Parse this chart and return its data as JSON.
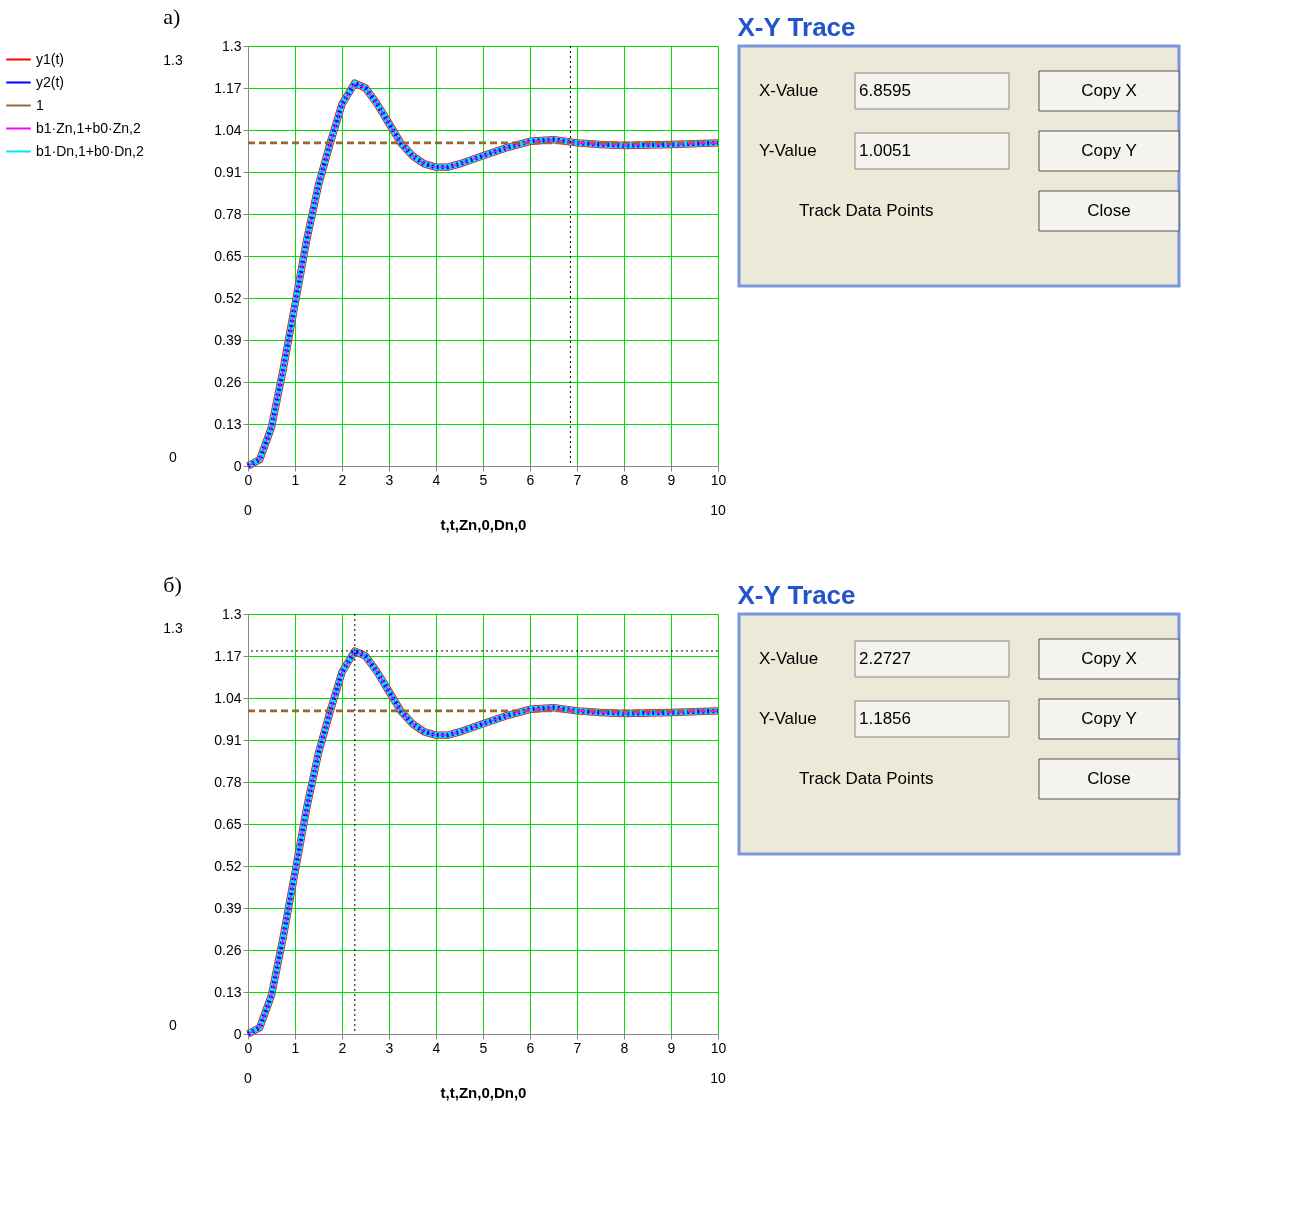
{
  "chart_data": [
    {
      "type": "line",
      "title": "а)",
      "xlabel": "t,t,Zn,0,Dn,0",
      "x": [
        0,
        0.25,
        0.5,
        0.75,
        1,
        1.25,
        1.5,
        1.75,
        2,
        2.27,
        2.5,
        2.75,
        3,
        3.25,
        3.5,
        3.75,
        4,
        4.25,
        4.5,
        5,
        5.5,
        6,
        6.5,
        7,
        7.5,
        8,
        9,
        10
      ],
      "series": [
        {
          "name": "y1(t)",
          "color": "#ff0000",
          "line_style": "solid",
          "values": [
            0,
            0.02,
            0.12,
            0.3,
            0.5,
            0.7,
            0.87,
            1.0,
            1.12,
            1.185,
            1.17,
            1.12,
            1.06,
            1.0,
            0.96,
            0.935,
            0.925,
            0.925,
            0.935,
            0.96,
            0.985,
            1.005,
            1.01,
            1.0,
            0.995,
            0.992,
            0.995,
            1.0
          ]
        },
        {
          "name": "y2(t)",
          "color": "#0000ff",
          "line_style": "dotted",
          "values": [
            0,
            0.02,
            0.12,
            0.3,
            0.5,
            0.7,
            0.87,
            1.0,
            1.12,
            1.185,
            1.17,
            1.12,
            1.06,
            1.0,
            0.96,
            0.935,
            0.925,
            0.925,
            0.935,
            0.96,
            0.985,
            1.005,
            1.01,
            1.0,
            0.995,
            0.992,
            0.995,
            1.0
          ]
        },
        {
          "name": "1",
          "color": "#996633",
          "line_style": "dashed",
          "values": [
            1,
            1,
            1,
            1,
            1,
            1,
            1,
            1,
            1,
            1,
            1,
            1,
            1,
            1,
            1,
            1,
            1,
            1,
            1,
            1,
            1,
            1,
            1,
            1,
            1,
            1,
            1,
            1
          ]
        },
        {
          "name": "b1·Zn,1+b0·Zn,2",
          "color": "#ff00ff",
          "line_style": "dashed",
          "values": [
            0,
            0.02,
            0.12,
            0.3,
            0.5,
            0.7,
            0.87,
            1.0,
            1.12,
            1.185,
            1.17,
            1.12,
            1.06,
            1.0,
            0.96,
            0.935,
            0.925,
            0.925,
            0.935,
            0.96,
            0.985,
            1.005,
            1.01,
            1.0,
            0.995,
            0.992,
            0.995,
            1.0
          ]
        },
        {
          "name": "b1·Dn,1+b0·Dn,2",
          "color": "#00e5ff",
          "line_style": "solid",
          "values": [
            0,
            0.02,
            0.12,
            0.3,
            0.5,
            0.7,
            0.87,
            1.0,
            1.12,
            1.185,
            1.17,
            1.12,
            1.06,
            1.0,
            0.96,
            0.935,
            0.925,
            0.925,
            0.935,
            0.96,
            0.985,
            1.005,
            1.01,
            1.0,
            0.995,
            0.992,
            0.995,
            1.0
          ]
        }
      ],
      "xlim": [
        0,
        10
      ],
      "xticks": [
        0,
        1,
        2,
        3,
        4,
        5,
        6,
        7,
        8,
        9,
        10
      ],
      "ylim": [
        0,
        1.3
      ],
      "yticks": [
        0,
        0.13,
        0.26,
        0.39,
        0.52,
        0.65,
        0.78,
        0.91,
        1.04,
        1.17,
        1.3
      ],
      "ref_lines": [
        {
          "axis": "x",
          "value": 6.8595,
          "color": "#000000",
          "line_style": "dotted"
        }
      ],
      "annotations": [
        "1.3",
        "0",
        "0",
        "10"
      ],
      "grid": true,
      "legend": "left"
    },
    {
      "type": "other",
      "title": "X-Y Trace",
      "annotations": [
        "X-Value",
        "6.8595",
        "Copy X",
        "Y-Value",
        "1.0051",
        "Copy Y",
        "Track Data Points",
        "Close"
      ]
    },
    {
      "type": "line",
      "title": "б)",
      "xlabel": "t,t,Zn,0,Dn,0",
      "x": [
        0,
        0.25,
        0.5,
        0.75,
        1,
        1.25,
        1.5,
        1.75,
        2,
        2.27,
        2.5,
        2.75,
        3,
        3.25,
        3.5,
        3.75,
        4,
        4.25,
        4.5,
        5,
        5.5,
        6,
        6.5,
        7,
        7.5,
        8,
        9,
        10
      ],
      "series": [
        {
          "name": "y1(t)",
          "color": "#ff0000",
          "line_style": "solid",
          "values": [
            0,
            0.02,
            0.12,
            0.3,
            0.5,
            0.7,
            0.87,
            1.0,
            1.12,
            1.185,
            1.17,
            1.12,
            1.06,
            1.0,
            0.96,
            0.935,
            0.925,
            0.925,
            0.935,
            0.96,
            0.985,
            1.005,
            1.01,
            1.0,
            0.995,
            0.992,
            0.995,
            1.0
          ]
        },
        {
          "name": "y2(t)",
          "color": "#0000ff",
          "line_style": "dotted",
          "values": [
            0,
            0.02,
            0.12,
            0.3,
            0.5,
            0.7,
            0.87,
            1.0,
            1.12,
            1.185,
            1.17,
            1.12,
            1.06,
            1.0,
            0.96,
            0.935,
            0.925,
            0.925,
            0.935,
            0.96,
            0.985,
            1.005,
            1.01,
            1.0,
            0.995,
            0.992,
            0.995,
            1.0
          ]
        },
        {
          "name": "1",
          "color": "#996633",
          "line_style": "dashed",
          "values": [
            1,
            1,
            1,
            1,
            1,
            1,
            1,
            1,
            1,
            1,
            1,
            1,
            1,
            1,
            1,
            1,
            1,
            1,
            1,
            1,
            1,
            1,
            1,
            1,
            1,
            1,
            1,
            1
          ]
        },
        {
          "name": "b1·Zn,1+b0·Zn,2",
          "color": "#ff00ff",
          "line_style": "dashed",
          "values": [
            0,
            0.02,
            0.12,
            0.3,
            0.5,
            0.7,
            0.87,
            1.0,
            1.12,
            1.185,
            1.17,
            1.12,
            1.06,
            1.0,
            0.96,
            0.935,
            0.925,
            0.925,
            0.935,
            0.96,
            0.985,
            1.005,
            1.01,
            1.0,
            0.995,
            0.992,
            0.995,
            1.0
          ]
        },
        {
          "name": "b1·Dn,1+b0·Dn,2",
          "color": "#00e5ff",
          "line_style": "solid",
          "values": [
            0,
            0.02,
            0.12,
            0.3,
            0.5,
            0.7,
            0.87,
            1.0,
            1.12,
            1.185,
            1.17,
            1.12,
            1.06,
            1.0,
            0.96,
            0.935,
            0.925,
            0.925,
            0.935,
            0.96,
            0.985,
            1.005,
            1.01,
            1.0,
            0.995,
            0.992,
            0.995,
            1.0
          ]
        }
      ],
      "xlim": [
        0,
        10
      ],
      "xticks": [
        0,
        1,
        2,
        3,
        4,
        5,
        6,
        7,
        8,
        9,
        10
      ],
      "ylim": [
        0,
        1.3
      ],
      "yticks": [
        0,
        0.13,
        0.26,
        0.39,
        0.52,
        0.65,
        0.78,
        0.91,
        1.04,
        1.17,
        1.3
      ],
      "ref_lines": [
        {
          "axis": "x",
          "value": 2.2727,
          "color": "#000000",
          "line_style": "dotted"
        },
        {
          "axis": "y",
          "value": 1.1856,
          "color": "#000000",
          "line_style": "dotted"
        }
      ],
      "annotations": [
        "1.3",
        "0",
        "0",
        "10"
      ],
      "grid": true,
      "legend": "left"
    },
    {
      "type": "other",
      "title": "X-Y Trace",
      "annotations": [
        "X-Value",
        "2.2727",
        "Copy X",
        "Y-Value",
        "1.1856",
        "Copy Y",
        "Track Data Points",
        "Close"
      ]
    }
  ]
}
